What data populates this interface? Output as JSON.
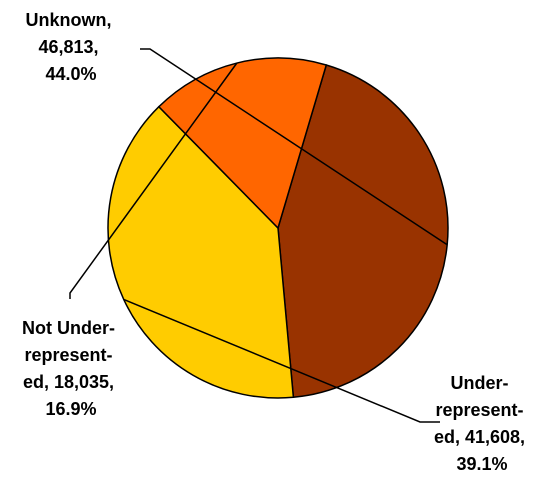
{
  "chart_data": {
    "type": "pie",
    "title": "",
    "slices": [
      {
        "key": "unknown",
        "name": "Unknown",
        "value": 46813,
        "percent": 44.0,
        "color": "#993300",
        "label_lines": [
          "Unknown,",
          "46,813,",
          "44.0%"
        ]
      },
      {
        "key": "under",
        "name": "Under-represented",
        "value": 41608,
        "percent": 39.1,
        "color": "#FFCC00",
        "label_lines": [
          "Under-",
          "represent-",
          "ed, 41,608,",
          "39.1%"
        ]
      },
      {
        "key": "notunder",
        "name": "Not Under-represented",
        "value": 18035,
        "percent": 16.9,
        "color": "#FF6600",
        "label_lines": [
          "Not Under-",
          "represent-",
          "ed, 18,035,",
          "16.9%"
        ]
      }
    ],
    "legend": "none",
    "start_angle_deg": -73.5
  }
}
